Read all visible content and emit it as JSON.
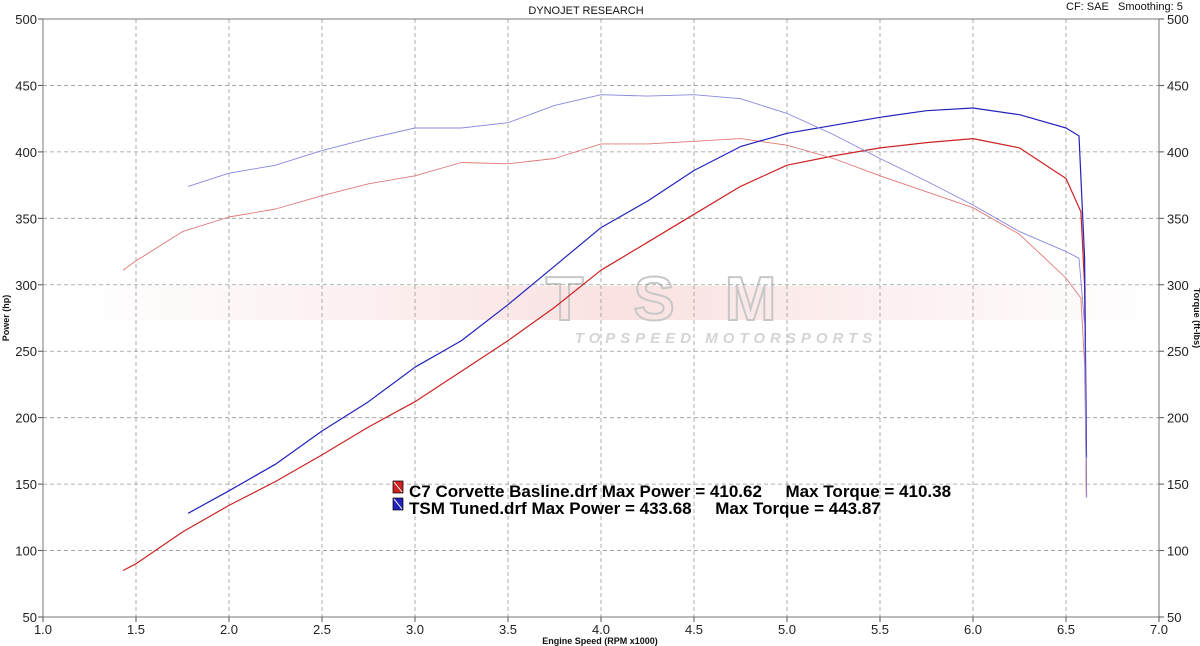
{
  "header": {
    "title": "DYNOJET RESEARCH",
    "cf": "CF: SAE",
    "smoothing": "Smoothing: 5"
  },
  "watermark": {
    "logo": "TSM",
    "tagline": "TOPSPEED MOTORSPORTS"
  },
  "chart_data": {
    "type": "line",
    "title": "DYNOJET RESEARCH",
    "xlabel": "Engine Speed (RPM x1000)",
    "ylabel": "Power (hp)",
    "y2label": "Torque (ft-lbs)",
    "xlim": [
      1.0,
      7.0
    ],
    "ylim": [
      50,
      500
    ],
    "y2lim": [
      50,
      500
    ],
    "x_ticks": [
      "1.0",
      "1.5",
      "2.0",
      "2.5",
      "3.0",
      "3.5",
      "4.0",
      "4.5",
      "5.0",
      "5.5",
      "6.0",
      "6.5",
      "7.0"
    ],
    "y_ticks": [
      "50",
      "100",
      "150",
      "200",
      "250",
      "300",
      "350",
      "400",
      "450",
      "500"
    ],
    "grid": true,
    "colors": {
      "baseline": "#cc2222",
      "tuned": "#2222bb"
    },
    "legend": [
      {
        "label": "C7 Corvette Basline.drf Max Power = 410.62     Max Torque = 410.38",
        "color": "#cc2222"
      },
      {
        "label": "TSM Tuned.drf Max Power = 433.68     Max Torque = 443.87",
        "color": "#2222bb"
      }
    ],
    "series": [
      {
        "name": "C7 Corvette Basline.drf",
        "measure": "Power",
        "color": "#cc2222",
        "width": 1.2,
        "x": [
          1.43,
          1.5,
          1.75,
          2.0,
          2.25,
          2.5,
          2.75,
          3.0,
          3.25,
          3.5,
          3.75,
          4.0,
          4.25,
          4.5,
          4.75,
          5.0,
          5.25,
          5.5,
          5.75,
          6.0,
          6.25,
          6.5,
          6.58,
          6.6,
          6.61
        ],
        "y": [
          85,
          90,
          114,
          134,
          152,
          172,
          193,
          212,
          235,
          258,
          283,
          311,
          332,
          353,
          374,
          390,
          397,
          403,
          407,
          410,
          403,
          380,
          355,
          300,
          140
        ]
      },
      {
        "name": "C7 Corvette Basline.drf",
        "measure": "Torque",
        "color": "#e07878",
        "width": 0.9,
        "x": [
          1.43,
          1.5,
          1.75,
          2.0,
          2.25,
          2.5,
          2.75,
          3.0,
          3.25,
          3.5,
          3.75,
          4.0,
          4.25,
          4.5,
          4.75,
          5.0,
          5.25,
          5.5,
          5.75,
          6.0,
          6.25,
          6.5,
          6.58,
          6.6,
          6.61
        ],
        "y": [
          311,
          318,
          340,
          351,
          357,
          367,
          376,
          382,
          392,
          391,
          395,
          406,
          406,
          408,
          410,
          405,
          395,
          382,
          370,
          358,
          338,
          305,
          290,
          240,
          140
        ]
      },
      {
        "name": "TSM Tuned.drf",
        "measure": "Power",
        "color": "#2222bb",
        "width": 1.2,
        "x": [
          1.78,
          2.0,
          2.25,
          2.5,
          2.75,
          3.0,
          3.25,
          3.5,
          3.75,
          4.0,
          4.25,
          4.5,
          4.75,
          5.0,
          5.25,
          5.5,
          5.75,
          6.0,
          6.25,
          6.5,
          6.57,
          6.6,
          6.61
        ],
        "y": [
          128,
          145,
          165,
          190,
          212,
          238,
          258,
          285,
          314,
          343,
          363,
          386,
          404,
          414,
          420,
          426,
          431,
          433,
          428,
          418,
          412,
          320,
          170
        ]
      },
      {
        "name": "TSM Tuned.drf",
        "measure": "Torque",
        "color": "#8888dd",
        "width": 0.9,
        "x": [
          1.78,
          2.0,
          2.25,
          2.5,
          2.75,
          3.0,
          3.25,
          3.5,
          3.75,
          4.0,
          4.25,
          4.5,
          4.75,
          5.0,
          5.25,
          5.5,
          5.75,
          6.0,
          6.25,
          6.5,
          6.57,
          6.6,
          6.61
        ],
        "y": [
          374,
          384,
          390,
          401,
          410,
          418,
          418,
          422,
          435,
          443,
          442,
          443,
          440,
          429,
          413,
          395,
          378,
          360,
          340,
          325,
          320,
          270,
          140
        ]
      }
    ]
  }
}
